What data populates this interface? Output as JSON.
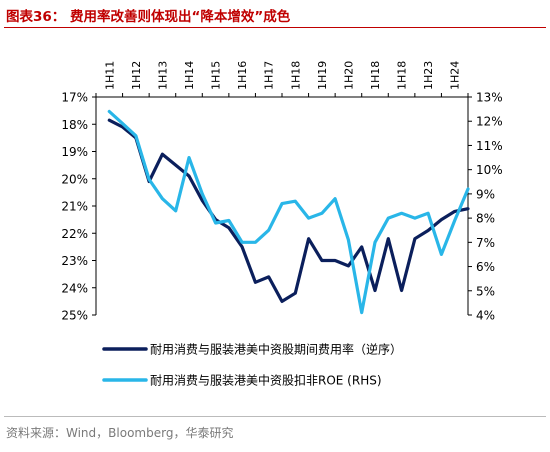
{
  "figure": {
    "title": "图表36： 费用率改善则体现出“降本增效”成色",
    "source": "资料来源：Wind，Bloomberg，华泰研究"
  },
  "chart_data": {
    "type": "line",
    "x_tick_labels": [
      "1H11",
      "1H12",
      "1H13",
      "1H14",
      "1H15",
      "1H16",
      "1H17",
      "1H18",
      "1H19",
      "1H20",
      "1H18",
      "1H18",
      "1H23",
      "1H24"
    ],
    "left_axis": {
      "ticks": [
        "17%",
        "18%",
        "19%",
        "20%",
        "21%",
        "22%",
        "23%",
        "24%",
        "25%"
      ],
      "range": [
        17,
        25
      ],
      "reversed": true
    },
    "right_axis": {
      "ticks": [
        "13%",
        "12%",
        "11%",
        "10%",
        "9%",
        "8%",
        "7%",
        "6%",
        "5%",
        "4%"
      ],
      "range": [
        4,
        13
      ]
    },
    "grid": false,
    "legend_position": "bottom",
    "series": [
      {
        "name": "耐用消费与服装港美中资股期间费用率（逆序）",
        "axis": "left",
        "color": "#0b1f5c",
        "points": [
          [
            0,
            17.85
          ],
          [
            0.5,
            18.1
          ],
          [
            1,
            18.5
          ],
          [
            1.5,
            20.1
          ],
          [
            2,
            19.1
          ],
          [
            2.5,
            19.5
          ],
          [
            3,
            19.9
          ],
          [
            3.5,
            20.8
          ],
          [
            4,
            21.5
          ],
          [
            4.5,
            21.8
          ],
          [
            5,
            22.5
          ],
          [
            5.5,
            23.8
          ],
          [
            6,
            23.6
          ],
          [
            6.5,
            24.5
          ],
          [
            7,
            24.2
          ],
          [
            7.5,
            22.2
          ],
          [
            8,
            23.0
          ],
          [
            8.5,
            23.0
          ],
          [
            9,
            23.2
          ],
          [
            9.5,
            22.5
          ],
          [
            10,
            24.1
          ],
          [
            10.5,
            22.2
          ],
          [
            11,
            24.1
          ],
          [
            11.5,
            22.2
          ],
          [
            12,
            21.9
          ],
          [
            12.5,
            21.5
          ],
          [
            13,
            21.2
          ],
          [
            13.5,
            21.1
          ]
        ]
      },
      {
        "name": "耐用消费与服装港美中资股扣非ROE (RHS)",
        "axis": "right",
        "color": "#29b6e8",
        "points": [
          [
            0,
            12.4
          ],
          [
            0.5,
            11.9
          ],
          [
            1,
            11.4
          ],
          [
            1.5,
            9.6
          ],
          [
            2,
            8.8
          ],
          [
            2.5,
            8.3
          ],
          [
            3,
            10.5
          ],
          [
            3.5,
            9.0
          ],
          [
            4,
            7.8
          ],
          [
            4.5,
            7.9
          ],
          [
            5,
            7.0
          ],
          [
            5.5,
            7.0
          ],
          [
            6,
            7.5
          ],
          [
            6.5,
            8.6
          ],
          [
            7,
            8.7
          ],
          [
            7.5,
            8.0
          ],
          [
            8,
            8.2
          ],
          [
            8.5,
            8.8
          ],
          [
            9,
            7.1
          ],
          [
            9.5,
            4.1
          ],
          [
            10,
            7.0
          ],
          [
            10.5,
            8.0
          ],
          [
            11,
            8.2
          ],
          [
            11.5,
            8.0
          ],
          [
            12,
            8.2
          ],
          [
            12.5,
            6.5
          ],
          [
            13,
            7.9
          ],
          [
            13.5,
            9.2
          ]
        ]
      }
    ]
  }
}
